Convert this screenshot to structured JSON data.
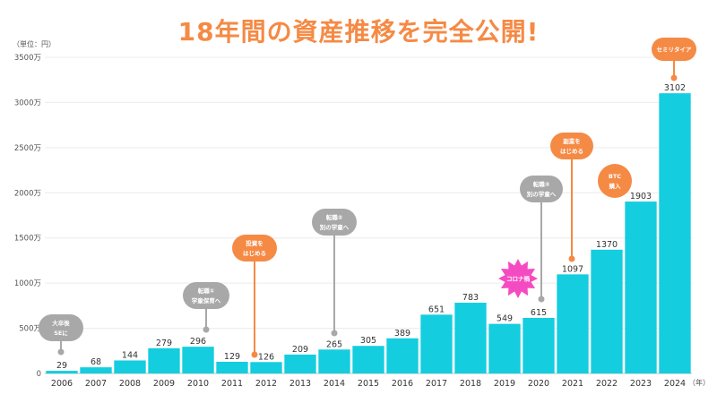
{
  "title": "18年間の資産推移を完全公開!",
  "colors": {
    "bar": "#14cddf",
    "orange": "#f58a45",
    "gray": "#a8a8a8",
    "pink": "#f54bc2"
  },
  "chart_data": {
    "type": "bar",
    "categories": [
      "2006",
      "2007",
      "2008",
      "2009",
      "2010",
      "2011",
      "2012",
      "2013",
      "2014",
      "2015",
      "2016",
      "2017",
      "2018",
      "2019",
      "2020",
      "2021",
      "2022",
      "2023",
      "2024"
    ],
    "values": [
      29,
      68,
      144,
      279,
      296,
      129,
      126,
      209,
      265,
      305,
      389,
      651,
      783,
      549,
      615,
      1097,
      1370,
      1903,
      3102
    ],
    "value_labels": [
      "29",
      "68",
      "144",
      "279",
      "296",
      "129",
      "126",
      "209",
      "265",
      "305",
      "389",
      "651",
      "783",
      "549",
      "615",
      "1097",
      "1370",
      "1903",
      "3102"
    ],
    "ylim": [
      0,
      3500
    ],
    "yticks": [
      0,
      500,
      1000,
      1500,
      2000,
      2500,
      3000,
      3500
    ],
    "ytick_labels": [
      "0",
      "500万",
      "1000万",
      "1500万",
      "2000万",
      "2500万",
      "3000万",
      "3500万"
    ],
    "yunit": "（単位：円）",
    "xunit": "（年）",
    "grid": true,
    "annotations": [
      {
        "year": "2006",
        "lines": [
          "大卒後",
          "SEに"
        ],
        "style": "gray",
        "shape": "bubble"
      },
      {
        "year": "2010",
        "lines": [
          "転職①",
          "学童保育へ"
        ],
        "style": "gray",
        "shape": "bubble"
      },
      {
        "year": "2012",
        "lines": [
          "投資を",
          "はじめる"
        ],
        "style": "orange",
        "shape": "bubble"
      },
      {
        "year": "2014",
        "lines": [
          "転職②",
          "別の学童へ"
        ],
        "style": "gray",
        "shape": "bubble"
      },
      {
        "year": "2020",
        "lines": [
          "コロナ禍"
        ],
        "style": "pink",
        "shape": "burst"
      },
      {
        "year": "2020",
        "lines": [
          "転職③",
          "別の学童へ"
        ],
        "style": "gray",
        "shape": "bubble"
      },
      {
        "year": "2021",
        "lines": [
          "副業を",
          "はじめる"
        ],
        "style": "orange",
        "shape": "bubble"
      },
      {
        "year": "2023",
        "lines": [
          "BTC",
          "購入"
        ],
        "style": "orange",
        "shape": "circle"
      },
      {
        "year": "2024",
        "lines": [
          "セミリタイア"
        ],
        "style": "orange",
        "shape": "bubble"
      }
    ]
  }
}
